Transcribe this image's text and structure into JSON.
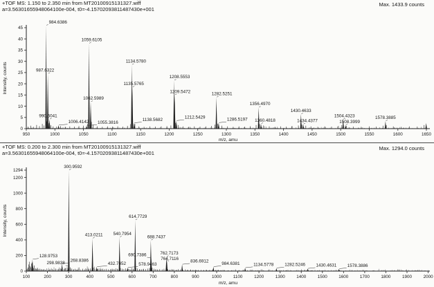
{
  "chart_data": [
    {
      "type": "line",
      "kind": "mass-spectrum",
      "title": "+TOF MS: 1.150 to 2.350 min from MT20100915131327.wiff",
      "calibration": "a=3.56301655948064100e-004, t0=-4.15702093811487430e+001",
      "max_counts_label": "Max. 1433.9 counts",
      "max_counts": 1433.9,
      "xlabel": "m/z, amu",
      "ylabel": "Intensity, counts",
      "xmin": 950,
      "xmax": 1656,
      "xtick_start": 950,
      "xtick_end": 1650,
      "xtick_step": 50,
      "yticks": [
        0,
        5,
        10,
        15,
        20,
        25,
        30,
        35,
        40,
        45
      ],
      "grid": false,
      "legend": false,
      "peak_fields": "[mz, intensity_counts, label, label_anchor(s|m|e), label_dx, label_dy]",
      "peaks": [
        [
          984.6386,
          46,
          "984.6386",
          "s",
          0,
          0
        ],
        [
          987.6322,
          24.5,
          "987.6322",
          "m",
          -4,
          0
        ],
        [
          990.6041,
          4.2,
          "990.6041",
          "m",
          -2,
          0
        ],
        [
          1006.4142,
          1.5,
          "1006.4142",
          "s",
          10,
          0
        ],
        [
          1055.3816,
          1.3,
          "1055.3816",
          "s",
          12,
          0
        ],
        [
          1059.6105,
          38,
          "1059.6105",
          "m",
          4,
          0
        ],
        [
          1062.5989,
          12,
          "1062.5989",
          "m",
          4,
          0
        ],
        [
          1134.578,
          28.5,
          "1134.5780",
          "m",
          6,
          0
        ],
        [
          1135.5765,
          18.5,
          "1135.5765",
          "m",
          2,
          0
        ],
        [
          1138.5682,
          2.5,
          "1138.5682",
          "s",
          8,
          0
        ],
        [
          1208.5553,
          21.5,
          "1208.5553",
          "m",
          8,
          0
        ],
        [
          1209.5472,
          15,
          "1209.5472",
          "m",
          8,
          0
        ],
        [
          1212.5429,
          3.5,
          "1212.5429",
          "s",
          8,
          0
        ],
        [
          1282.5251,
          14,
          "1282.5251",
          "m",
          8,
          0
        ],
        [
          1286.5197,
          2.6,
          "1286.5197",
          "s",
          8,
          0
        ],
        [
          1356.497,
          9.5,
          "1356.4970",
          "m",
          2,
          0
        ],
        [
          1360.4818,
          2.2,
          "1360.4818",
          "m",
          6,
          0
        ],
        [
          1430.4633,
          6.5,
          "1430.4633",
          "m",
          0,
          0
        ],
        [
          1434.4377,
          2.0,
          "1434.4377",
          "m",
          6,
          0
        ],
        [
          1504.4323,
          4.2,
          "1504.4323",
          "m",
          2,
          0
        ],
        [
          1508.3999,
          1.6,
          "1508.3999",
          "m",
          6,
          0
        ],
        [
          1578.3885,
          3.4,
          "1578.3885",
          "m",
          0,
          0
        ],
        [
          1649.6,
          2.5,
          null,
          "m",
          0,
          0
        ]
      ],
      "minor_peaks": [
        [
          953,
          0.9
        ],
        [
          958,
          1.3
        ],
        [
          963,
          0.8
        ],
        [
          968,
          1.6
        ],
        [
          973,
          1.1
        ],
        [
          978,
          2.1
        ],
        [
          981,
          1.4
        ],
        [
          986,
          3.2
        ],
        [
          989,
          2.4
        ],
        [
          993,
          1.5
        ],
        [
          997,
          1.0
        ],
        [
          1003,
          0.9
        ],
        [
          1010,
          1.1
        ],
        [
          1018,
          0.8
        ],
        [
          1026,
          1.0
        ],
        [
          1034,
          0.9
        ],
        [
          1042,
          1.1
        ],
        [
          1050,
          1.3
        ],
        [
          1057,
          2.2
        ],
        [
          1064,
          3.0
        ],
        [
          1067,
          1.8
        ],
        [
          1074,
          1.0
        ],
        [
          1083,
          0.8
        ],
        [
          1092,
          1.0
        ],
        [
          1101,
          0.9
        ],
        [
          1110,
          1.0
        ],
        [
          1119,
          0.9
        ],
        [
          1127,
          1.2
        ],
        [
          1132,
          2.0
        ],
        [
          1140,
          2.2
        ],
        [
          1147,
          1.0
        ],
        [
          1156,
          0.8
        ],
        [
          1166,
          1.0
        ],
        [
          1176,
          0.9
        ],
        [
          1186,
          1.0
        ],
        [
          1196,
          1.1
        ],
        [
          1203,
          1.4
        ],
        [
          1211,
          2.6
        ],
        [
          1216,
          1.6
        ],
        [
          1224,
          1.0
        ],
        [
          1234,
          0.8
        ],
        [
          1244,
          1.0
        ],
        [
          1254,
          0.9
        ],
        [
          1264,
          1.0
        ],
        [
          1274,
          1.2
        ],
        [
          1280,
          1.8
        ],
        [
          1285,
          2.2
        ],
        [
          1292,
          1.3
        ],
        [
          1302,
          1.0
        ],
        [
          1312,
          0.8
        ],
        [
          1322,
          1.0
        ],
        [
          1332,
          0.9
        ],
        [
          1342,
          1.1
        ],
        [
          1352,
          1.6
        ],
        [
          1358,
          2.0
        ],
        [
          1365,
          1.4
        ],
        [
          1375,
          1.0
        ],
        [
          1385,
          0.8
        ],
        [
          1395,
          1.0
        ],
        [
          1405,
          0.9
        ],
        [
          1415,
          1.1
        ],
        [
          1426,
          1.4
        ],
        [
          1432,
          1.8
        ],
        [
          1439,
          1.3
        ],
        [
          1448,
          1.0
        ],
        [
          1460,
          0.8
        ],
        [
          1472,
          1.0
        ],
        [
          1484,
          0.9
        ],
        [
          1496,
          1.2
        ],
        [
          1502,
          1.6
        ],
        [
          1510,
          1.2
        ],
        [
          1522,
          0.9
        ],
        [
          1536,
          0.8
        ],
        [
          1550,
          1.0
        ],
        [
          1562,
          0.9
        ],
        [
          1574,
          1.3
        ],
        [
          1580,
          1.5
        ],
        [
          1592,
          1.0
        ],
        [
          1606,
          0.8
        ],
        [
          1620,
          1.0
        ],
        [
          1634,
          0.9
        ],
        [
          1646,
          1.6
        ]
      ]
    },
    {
      "type": "line",
      "kind": "mass-spectrum",
      "title": "+TOF MS: 0.200 to 2.300 min from MT20100915131327.wiff",
      "calibration": "a=3.56301655948064100e-004, t0=-4.15702093811487430e+001",
      "max_counts_label": "Max. 1294.0 counts",
      "max_counts": 1294.0,
      "xlabel": "m/z, amu",
      "ylabel": "Intensity, counts",
      "xmin": 100,
      "xmax": 2008,
      "xtick_start": 100,
      "xtick_end": 2000,
      "xtick_step": 100,
      "yticks": [
        0,
        200,
        400,
        600,
        800,
        1000,
        1200,
        1294
      ],
      "grid": false,
      "legend": false,
      "peak_fields": "[mz, intensity_counts, label, label_anchor(s|m|e), label_dx, label_dy]",
      "peaks": [
        [
          128.9753,
          150,
          "128.9753",
          "s",
          6,
          0
        ],
        [
          268.8386,
          95,
          "268.8386",
          "s",
          8,
          0
        ],
        [
          298.9838,
          60,
          "298.9838",
          "e",
          -2,
          0
        ],
        [
          300.9592,
          1294,
          "300.9592",
          "m",
          6,
          0
        ],
        [
          413.0211,
          420,
          "413.0211",
          "m",
          2,
          0
        ],
        [
          432.7452,
          55,
          "432.7452",
          "s",
          12,
          0
        ],
        [
          540.7954,
          435,
          "540.7954",
          "m",
          4,
          0
        ],
        [
          578.9463,
          45,
          "578.9463",
          "s",
          12,
          0
        ],
        [
          614.7729,
          655,
          "614.7729",
          "m",
          4,
          0
        ],
        [
          688.7437,
          395,
          "688.7437",
          "m",
          8,
          0
        ],
        [
          690.7386,
          165,
          "690.7386",
          "e",
          -4,
          0
        ],
        [
          762.7173,
          185,
          "762.7173",
          "m",
          4,
          0
        ],
        [
          764.7116,
          135,
          "764.7116",
          "m",
          4,
          2
        ],
        [
          836.6912,
          85,
          "836.6912",
          "s",
          8,
          0
        ],
        [
          984.6381,
          55,
          "984.6381",
          "s",
          8,
          0
        ],
        [
          1134.5778,
          42,
          "1134.5778",
          "s",
          8,
          0
        ],
        [
          1282.5246,
          38,
          "1282.5246",
          "s",
          8,
          0
        ],
        [
          1430.4631,
          32,
          "1430.4631",
          "s",
          8,
          0
        ],
        [
          1578.3886,
          28,
          "1578.3886",
          "s",
          8,
          0
        ]
      ],
      "minor_peaks": [
        [
          104,
          28
        ],
        [
          108,
          45
        ],
        [
          111,
          85
        ],
        [
          114,
          120
        ],
        [
          117,
          65
        ],
        [
          121,
          48
        ],
        [
          124,
          95
        ],
        [
          127,
          110
        ],
        [
          131,
          58
        ],
        [
          134,
          38
        ],
        [
          138,
          72
        ],
        [
          143,
          32
        ],
        [
          148,
          26
        ],
        [
          153,
          42
        ],
        [
          158,
          22
        ],
        [
          164,
          30
        ],
        [
          170,
          26
        ],
        [
          176,
          20
        ],
        [
          183,
          24
        ],
        [
          190,
          18
        ],
        [
          198,
          22
        ],
        [
          207,
          16
        ],
        [
          214,
          20
        ],
        [
          222,
          26
        ],
        [
          230,
          18
        ],
        [
          238,
          32
        ],
        [
          245,
          22
        ],
        [
          253,
          28
        ],
        [
          261,
          34
        ],
        [
          270,
          44
        ],
        [
          278,
          26
        ],
        [
          285,
          36
        ],
        [
          293,
          48
        ],
        [
          303,
          70
        ],
        [
          308,
          46
        ],
        [
          315,
          32
        ],
        [
          323,
          24
        ],
        [
          331,
          28
        ],
        [
          340,
          20
        ],
        [
          349,
          26
        ],
        [
          358,
          20
        ],
        [
          367,
          24
        ],
        [
          376,
          20
        ],
        [
          385,
          28
        ],
        [
          394,
          22
        ],
        [
          403,
          34
        ],
        [
          417,
          44
        ],
        [
          424,
          30
        ],
        [
          436,
          28
        ],
        [
          444,
          34
        ],
        [
          452,
          26
        ],
        [
          461,
          30
        ],
        [
          470,
          24
        ],
        [
          479,
          28
        ],
        [
          488,
          22
        ],
        [
          497,
          26
        ],
        [
          506,
          30
        ],
        [
          514,
          24
        ],
        [
          523,
          34
        ],
        [
          531,
          28
        ],
        [
          545,
          38
        ],
        [
          553,
          30
        ],
        [
          561,
          26
        ],
        [
          569,
          34
        ],
        [
          582,
          28
        ],
        [
          590,
          24
        ],
        [
          598,
          38
        ],
        [
          606,
          30
        ],
        [
          618,
          42
        ],
        [
          626,
          34
        ],
        [
          635,
          26
        ],
        [
          645,
          22
        ],
        [
          655,
          28
        ],
        [
          665,
          24
        ],
        [
          675,
          32
        ],
        [
          683,
          40
        ],
        [
          695,
          42
        ],
        [
          703,
          30
        ],
        [
          712,
          26
        ],
        [
          721,
          22
        ],
        [
          731,
          26
        ],
        [
          742,
          22
        ],
        [
          751,
          28
        ],
        [
          760,
          30
        ],
        [
          770,
          24
        ],
        [
          779,
          20
        ],
        [
          788,
          26
        ],
        [
          797,
          22
        ],
        [
          808,
          18
        ],
        [
          818,
          24
        ],
        [
          828,
          20
        ],
        [
          840,
          18
        ],
        [
          852,
          22
        ],
        [
          864,
          16
        ],
        [
          876,
          18
        ],
        [
          888,
          16
        ],
        [
          900,
          18
        ],
        [
          913,
          14
        ],
        [
          926,
          16
        ],
        [
          939,
          13
        ],
        [
          952,
          16
        ],
        [
          966,
          13
        ],
        [
          980,
          18
        ],
        [
          994,
          13
        ],
        [
          1008,
          15
        ],
        [
          1022,
          11
        ],
        [
          1038,
          13
        ],
        [
          1055,
          11
        ],
        [
          1072,
          12
        ],
        [
          1090,
          11
        ],
        [
          1108,
          12
        ],
        [
          1126,
          14
        ],
        [
          1145,
          11
        ],
        [
          1164,
          10
        ],
        [
          1183,
          11
        ],
        [
          1202,
          9
        ],
        [
          1222,
          10
        ],
        [
          1244,
          9
        ],
        [
          1262,
          11
        ],
        [
          1284,
          10
        ],
        [
          1306,
          8
        ],
        [
          1328,
          9
        ],
        [
          1352,
          8
        ],
        [
          1376,
          9
        ],
        [
          1400,
          8
        ],
        [
          1424,
          9
        ],
        [
          1450,
          8
        ],
        [
          1476,
          9
        ],
        [
          1502,
          8
        ],
        [
          1528,
          7
        ],
        [
          1554,
          8
        ],
        [
          1582,
          8
        ],
        [
          1610,
          6
        ],
        [
          1640,
          7
        ],
        [
          1672,
          6
        ],
        [
          1706,
          7
        ],
        [
          1742,
          6
        ],
        [
          1780,
          6
        ],
        [
          1820,
          5
        ],
        [
          1862,
          6
        ],
        [
          1906,
          5
        ],
        [
          1952,
          6
        ]
      ]
    }
  ]
}
